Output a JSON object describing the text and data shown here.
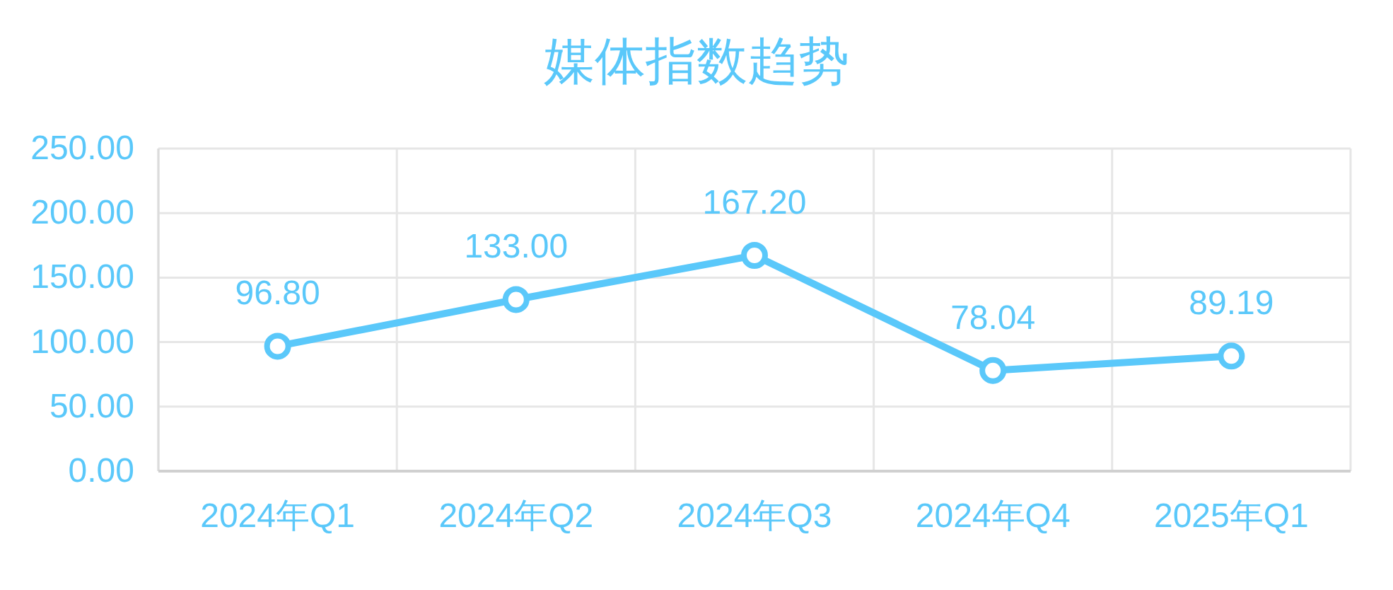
{
  "chart_data": {
    "type": "line",
    "title": "媒体指数趋势",
    "categories": [
      "2024年Q1",
      "2024年Q2",
      "2024年Q3",
      "2024年Q4",
      "2025年Q1"
    ],
    "values": [
      96.8,
      133,
      167.2,
      78.04,
      89.19
    ],
    "value_labels": [
      "96.80",
      "133.00",
      "167.20",
      "78.04",
      "89.19"
    ],
    "color": "#5ac8fa",
    "ylim": [
      0,
      250
    ],
    "yticks": [
      {
        "value": 0,
        "label": "0.00"
      },
      {
        "value": 50,
        "label": "50.00"
      },
      {
        "value": 100,
        "label": "100.00"
      },
      {
        "value": 150,
        "label": "150.00"
      },
      {
        "value": 200,
        "label": "200.00"
      },
      {
        "value": 250,
        "label": "250.00"
      }
    ],
    "grid": true,
    "marker": "circle",
    "line_style": "solid"
  }
}
